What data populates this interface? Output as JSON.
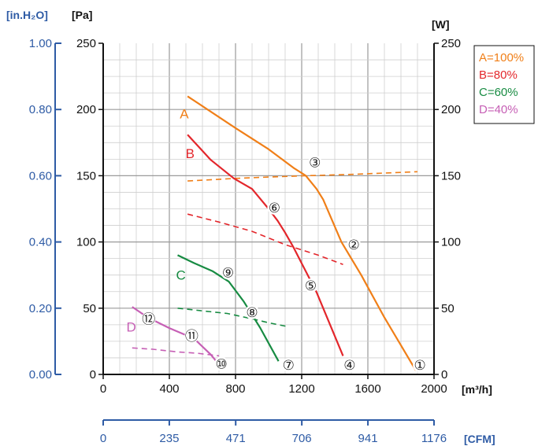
{
  "chart_data": {
    "type": "line",
    "xlabel": "[m³/h]",
    "ylabel": "[Pa]",
    "ylabel_inh2o": "[in.H₂O]",
    "ylabel_right": "[W]",
    "xlabel_cfm": "[CFM]",
    "xlim": [
      0,
      2000
    ],
    "ylim": [
      0,
      250
    ],
    "ylim_right": [
      0,
      250
    ],
    "grid": true,
    "x_ticks": [
      "0",
      "400",
      "800",
      "1200",
      "1600",
      "2000"
    ],
    "y_ticks": [
      "0",
      "50",
      "100",
      "150",
      "200",
      "250"
    ],
    "y_ticks_right": [
      "0",
      "50",
      "100",
      "150",
      "200",
      "250"
    ],
    "inh2o_ticks": [
      {
        "v": 0,
        "label": "0.00"
      },
      {
        "v": 0.2,
        "label": "0.20"
      },
      {
        "v": 0.4,
        "label": "0.40"
      },
      {
        "v": 0.6,
        "label": "0.60"
      },
      {
        "v": 0.8,
        "label": "0.80"
      },
      {
        "v": 1.0,
        "label": "1.00"
      }
    ],
    "cfm_ticks": [
      {
        "v": 0,
        "label": "0"
      },
      {
        "v": 235,
        "label": "235"
      },
      {
        "v": 471,
        "label": "471"
      },
      {
        "v": 706,
        "label": "706"
      },
      {
        "v": 941,
        "label": "941"
      },
      {
        "v": 1176,
        "label": "1176"
      }
    ],
    "legend_position": "top-right",
    "series": [
      {
        "name": "A=100%",
        "letter": "A",
        "color": "#f07f18",
        "letter_at": [
          490,
          197
        ],
        "pressure": [
          [
            510,
            210
          ],
          [
            800,
            186
          ],
          [
            1000,
            170
          ],
          [
            1150,
            156
          ],
          [
            1225,
            150
          ],
          [
            1290,
            140
          ],
          [
            1330,
            132
          ],
          [
            1440,
            100
          ],
          [
            1560,
            75
          ],
          [
            1700,
            43
          ],
          [
            1890,
            3
          ]
        ],
        "power": [
          [
            510,
            146
          ],
          [
            800,
            148
          ],
          [
            1000,
            149
          ],
          [
            1225,
            150
          ],
          [
            1500,
            151
          ],
          [
            1900,
            153
          ]
        ]
      },
      {
        "name": "B=80%",
        "letter": "B",
        "color": "#e3262b",
        "letter_at": [
          525,
          167
        ],
        "pressure": [
          [
            510,
            181
          ],
          [
            650,
            162
          ],
          [
            790,
            148
          ],
          [
            900,
            140
          ],
          [
            1000,
            125
          ],
          [
            1055,
            116
          ],
          [
            1100,
            107
          ],
          [
            1150,
            96
          ],
          [
            1290,
            62
          ],
          [
            1450,
            14
          ]
        ],
        "power": [
          [
            510,
            121
          ],
          [
            700,
            115
          ],
          [
            900,
            108
          ],
          [
            1100,
            98
          ],
          [
            1300,
            90
          ],
          [
            1450,
            83
          ]
        ]
      },
      {
        "name": "C=60%",
        "letter": "C",
        "color": "#178b42",
        "letter_at": [
          470,
          75
        ],
        "pressure": [
          [
            450,
            90
          ],
          [
            550,
            84
          ],
          [
            660,
            78
          ],
          [
            760,
            70
          ],
          [
            850,
            55
          ],
          [
            950,
            35
          ],
          [
            1060,
            10
          ]
        ],
        "power": [
          [
            450,
            50
          ],
          [
            600,
            48
          ],
          [
            750,
            46
          ],
          [
            900,
            42
          ],
          [
            1000,
            39
          ],
          [
            1120,
            36
          ]
        ]
      },
      {
        "name": "D=40%",
        "letter": "D",
        "color": "#c65fb5",
        "letter_at": [
          170,
          36
        ],
        "pressure": [
          [
            175,
            51
          ],
          [
            270,
            43
          ],
          [
            400,
            35
          ],
          [
            550,
            27
          ],
          [
            650,
            15
          ],
          [
            710,
            6
          ]
        ],
        "power": [
          [
            175,
            20
          ],
          [
            300,
            19
          ],
          [
            450,
            17
          ],
          [
            570,
            16
          ],
          [
            700,
            14
          ]
        ]
      }
    ],
    "markers": [
      {
        "label": "①",
        "x": 1915,
        "y": 7
      },
      {
        "label": "②",
        "x": 1515,
        "y": 98
      },
      {
        "label": "③",
        "x": 1280,
        "y": 160
      },
      {
        "label": "④",
        "x": 1490,
        "y": 7
      },
      {
        "label": "⑤",
        "x": 1255,
        "y": 67
      },
      {
        "label": "⑥",
        "x": 1035,
        "y": 126
      },
      {
        "label": "⑦",
        "x": 1120,
        "y": 7
      },
      {
        "label": "⑧",
        "x": 900,
        "y": 47
      },
      {
        "label": "⑨",
        "x": 755,
        "y": 77
      },
      {
        "label": "⑩",
        "x": 715,
        "y": 8
      },
      {
        "label": "⑪",
        "x": 535,
        "y": 29
      },
      {
        "label": "⑫",
        "x": 275,
        "y": 42
      }
    ]
  }
}
